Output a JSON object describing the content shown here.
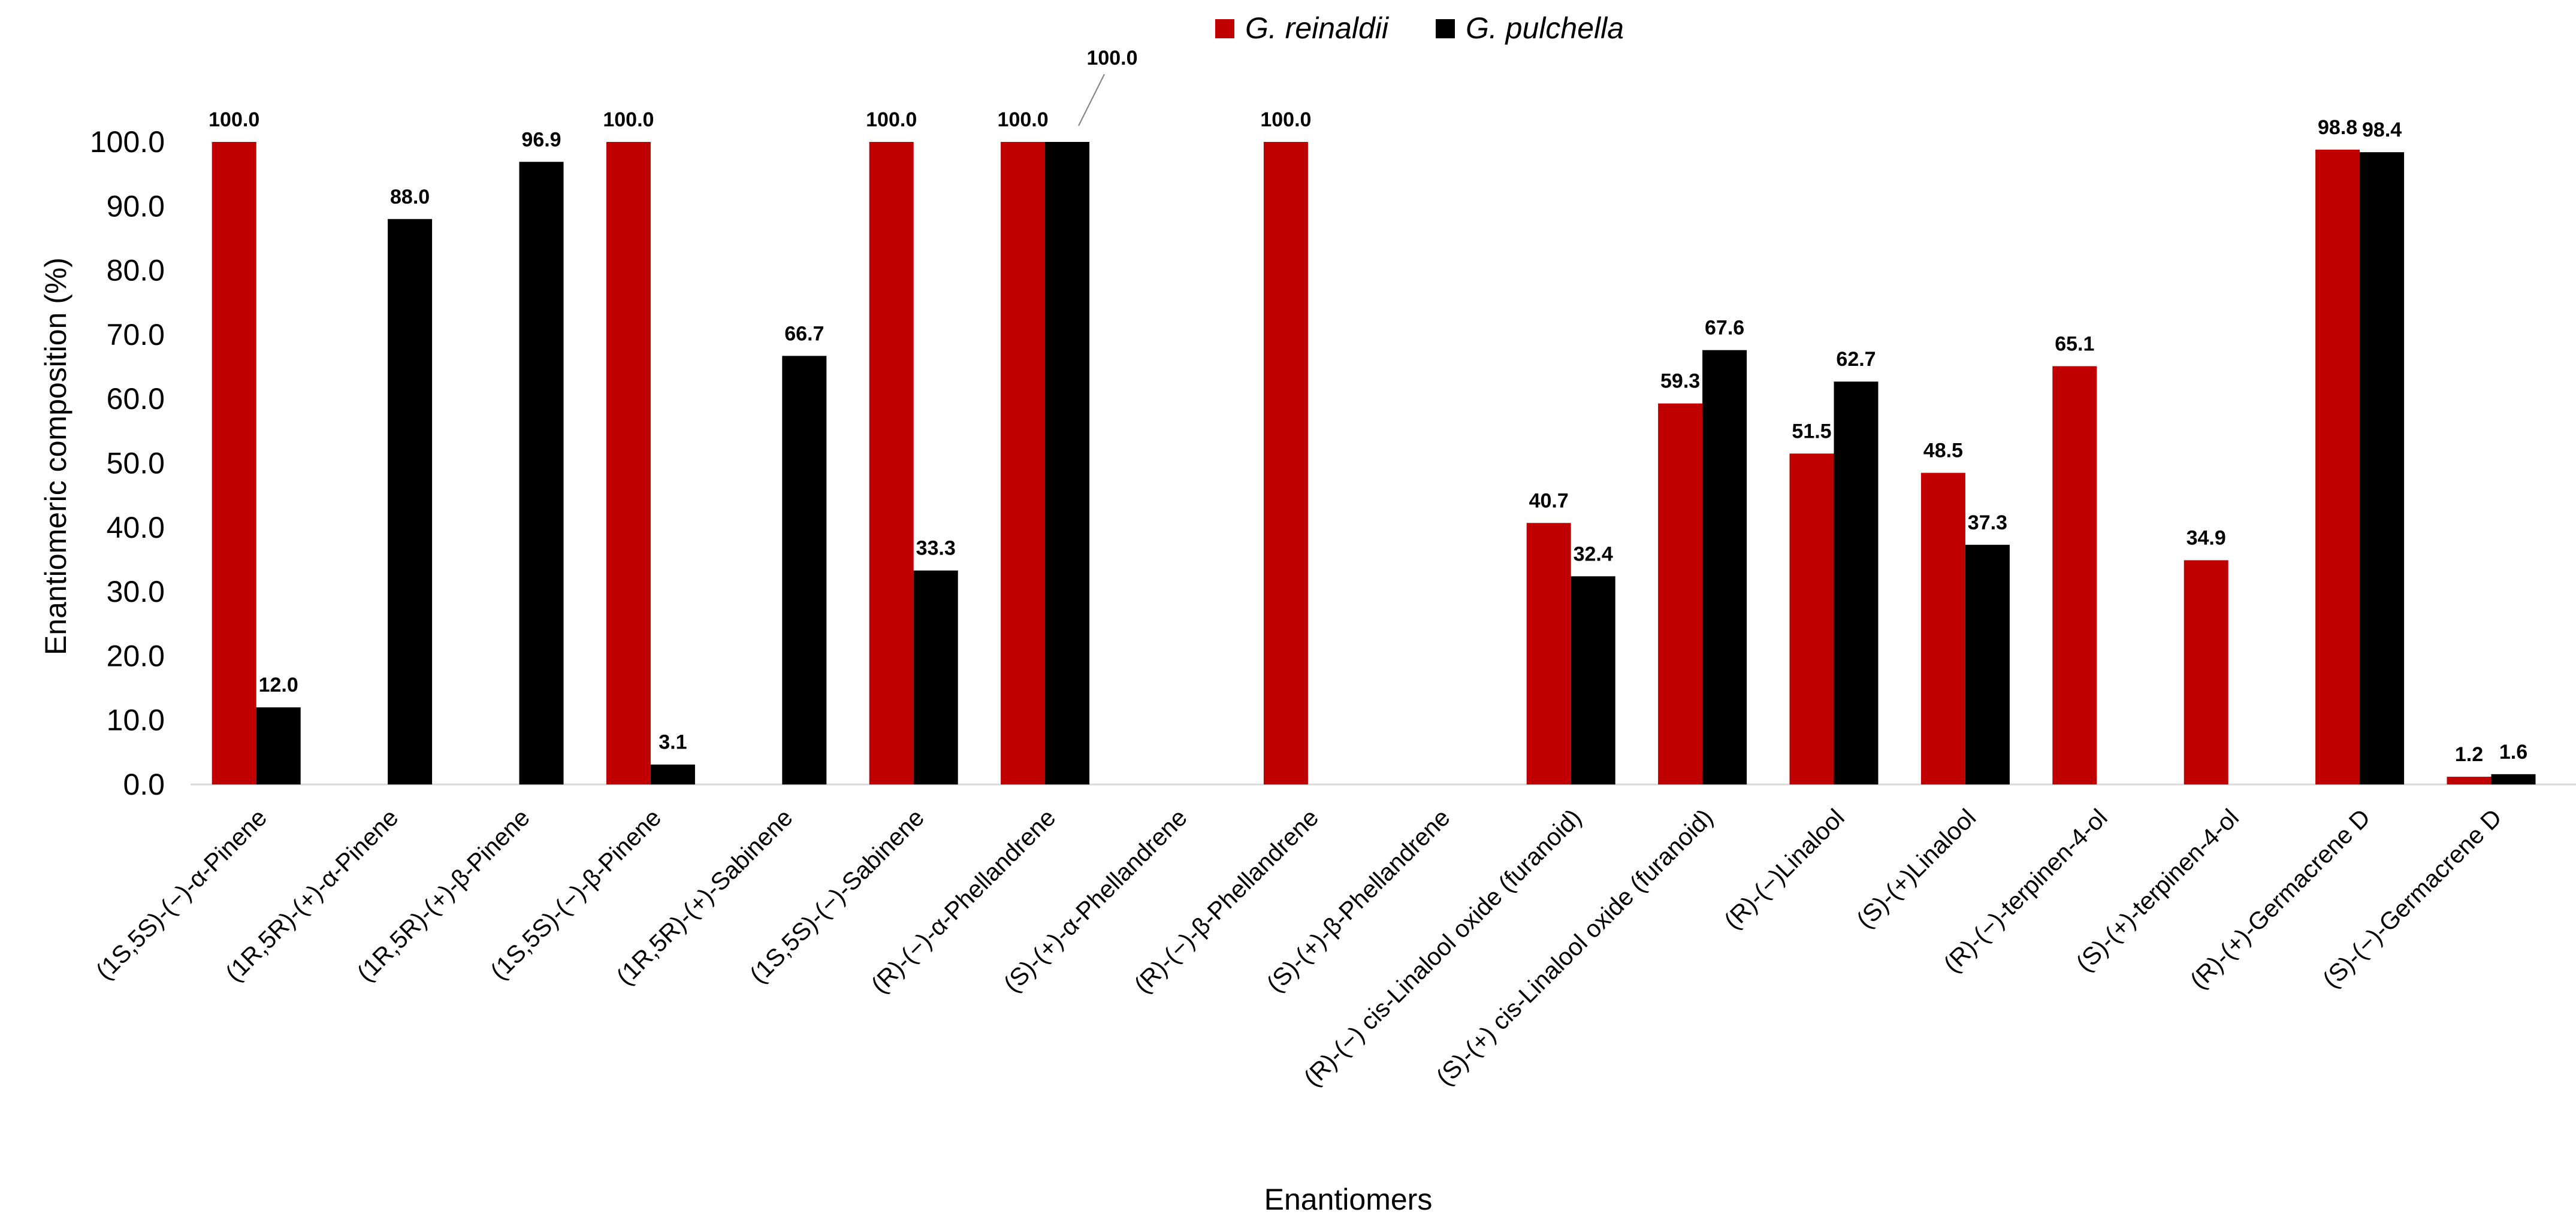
{
  "chart_data": {
    "type": "bar",
    "title": "",
    "xlabel": "Enantiomers",
    "ylabel": "Enantiomeric composition (%)",
    "ylim": [
      0,
      100
    ],
    "yticks": [
      "0.0",
      "10.0",
      "20.0",
      "30.0",
      "40.0",
      "50.0",
      "60.0",
      "70.0",
      "80.0",
      "90.0",
      "100.0"
    ],
    "legend_position": "top",
    "categories": [
      "(1S,5S)-(−)-α-Pinene",
      "(1R,5R)-(+)-α-Pinene",
      "(1R,5R)-(+)-β-Pinene",
      "(1S,5S)-(−)-β-Pinene",
      "(1R,5R)-(+)-Sabinene",
      "(1S,5S)-(−)-Sabinene",
      "(R)-(−)-α-Phellandrene",
      "(S)-(+)-α-Phellandrene",
      "(R)-(−)-β-Phellandrene",
      "(S)-(+)-β-Phellandrene",
      "(R)-(−) cis-Linalool oxide  (furanoid)",
      "(S)-(+) cis-Linalool oxide  (furanoid)",
      "(R)-(−)Linalool",
      "(S)-(+)Linalool",
      "(R)-(−)-terpinen-4-ol",
      "(S)-(+)-terpinen-4-ol",
      "(R)-(+)-Germacrene D",
      "(S)-(−)-Germacrene D"
    ],
    "series": [
      {
        "name": "G. reinaldii",
        "color": "#c00000",
        "values": [
          100.0,
          null,
          null,
          100.0,
          null,
          100.0,
          100.0,
          null,
          100.0,
          null,
          40.7,
          59.3,
          51.5,
          48.5,
          65.1,
          34.9,
          98.8,
          1.2
        ],
        "labels": [
          "100.0",
          "",
          "",
          "100.0",
          "",
          "100.0",
          "100.0",
          "",
          "100.0",
          "",
          "40.7",
          "59.3",
          "51.5",
          "48.5",
          "65.1",
          "34.9",
          "98.8",
          "1.2"
        ]
      },
      {
        "name": "G. pulchella",
        "color": "#000000",
        "values": [
          12.0,
          88.0,
          96.9,
          3.1,
          66.7,
          33.3,
          100.0,
          null,
          null,
          null,
          32.4,
          67.6,
          62.7,
          37.3,
          null,
          null,
          98.4,
          1.6
        ],
        "labels": [
          "12.0",
          "88.0",
          "96.9",
          "3.1",
          "66.7",
          "33.3",
          "100.0",
          "",
          "",
          "",
          "32.4",
          "67.6",
          "62.7",
          "37.3",
          "",
          "",
          "98.4",
          "1.6"
        ]
      }
    ]
  }
}
